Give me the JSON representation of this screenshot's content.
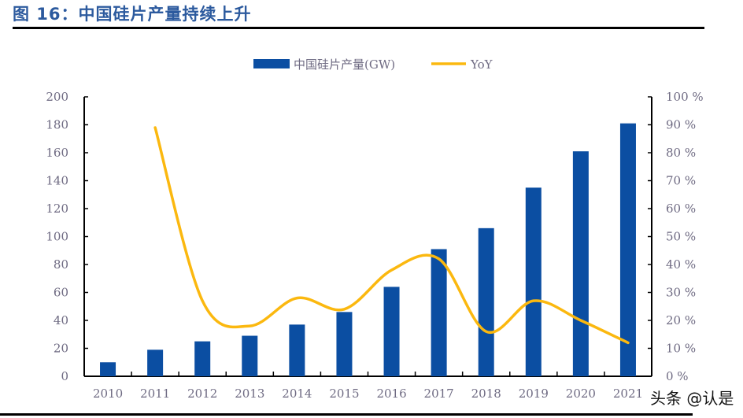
{
  "title": "图 16：中国硅片产量持续上升",
  "watermark": "头条 @认是",
  "chart_data": {
    "type": "bar+line",
    "categories": [
      "2010",
      "2011",
      "2012",
      "2013",
      "2014",
      "2015",
      "2016",
      "2017",
      "2018",
      "2019",
      "2020",
      "2021"
    ],
    "series": [
      {
        "name": "中国硅片产量(GW)",
        "type": "bar",
        "axis": "left",
        "color": "#0b4ea2",
        "values": [
          10,
          19,
          25,
          29,
          37,
          46,
          64,
          91,
          106,
          135,
          161,
          181
        ]
      },
      {
        "name": "YoY",
        "type": "line",
        "axis": "right",
        "color": "#fbb80f",
        "values": [
          null,
          89,
          27,
          18,
          28,
          24,
          38,
          42,
          16,
          27,
          20,
          12
        ]
      }
    ],
    "y_left": {
      "ylim": [
        0,
        200
      ],
      "ticks": [
        "0",
        "20",
        "40",
        "60",
        "80",
        "100",
        "120",
        "140",
        "160",
        "180",
        "200"
      ]
    },
    "y_right": {
      "ylim": [
        0,
        100
      ],
      "unit": "%",
      "ticks": [
        "0%",
        "10%",
        "20%",
        "30%",
        "40%",
        "50%",
        "60%",
        "70%",
        "80%",
        "90%",
        "100%"
      ]
    },
    "legend_position": "top-center",
    "grid": false
  }
}
